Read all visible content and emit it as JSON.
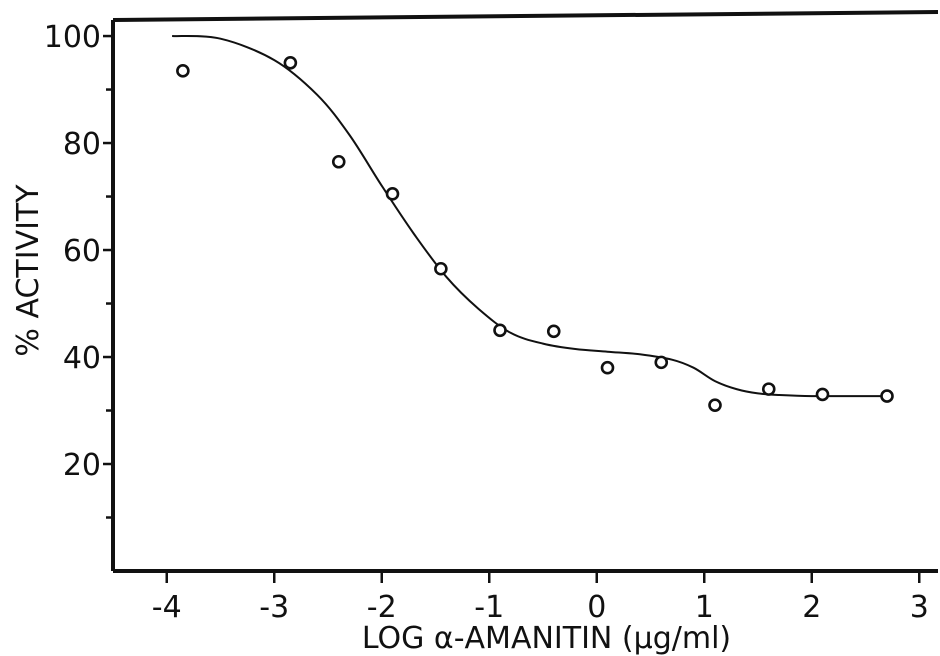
{
  "chart_data": {
    "type": "scatter",
    "xlabel": "LOG  α-AMANITIN (μg/ml)",
    "ylabel": "% ACTIVITY",
    "xlim": [
      -4.5,
      3.1
    ],
    "ylim": [
      0,
      103
    ],
    "xticks": [
      -4,
      -3,
      -2,
      -1,
      0,
      1,
      2,
      3
    ],
    "xtick_labels": [
      "-4",
      "-3",
      "-2",
      "-1",
      "0",
      "1",
      "2",
      "3"
    ],
    "yticks": [
      20,
      40,
      60,
      80,
      100
    ],
    "ytick_labels": [
      "20",
      "40",
      "60",
      "80",
      "100"
    ],
    "yminor_ticks": [
      10,
      30,
      50,
      70,
      90
    ],
    "grid": false,
    "series": [
      {
        "kind": "points",
        "x": [
          -3.85,
          -2.85,
          -2.4,
          -1.9,
          -1.45,
          -0.9,
          -0.4,
          0.1,
          0.6,
          1.1,
          1.6,
          2.1,
          2.7
        ],
        "y": [
          93.5,
          95,
          76.5,
          70.5,
          56.5,
          45,
          44.8,
          38,
          39,
          31,
          34,
          33,
          32.7
        ]
      },
      {
        "kind": "fit-curve",
        "x": [
          -3.95,
          -3.5,
          -3.0,
          -2.6,
          -2.3,
          -2.0,
          -1.7,
          -1.4,
          -1.1,
          -0.8,
          -0.5,
          -0.2,
          0.1,
          0.4,
          0.7,
          0.9,
          1.1,
          1.3,
          1.5,
          1.7,
          2.0,
          2.3,
          2.6,
          2.75
        ],
        "y": [
          100,
          99.5,
          95.5,
          89,
          81.5,
          72,
          63,
          55,
          49,
          44.5,
          42.5,
          41.5,
          41,
          40.5,
          39.5,
          38,
          35.5,
          34,
          33.2,
          32.9,
          32.7,
          32.7,
          32.7,
          32.7
        ]
      }
    ]
  }
}
